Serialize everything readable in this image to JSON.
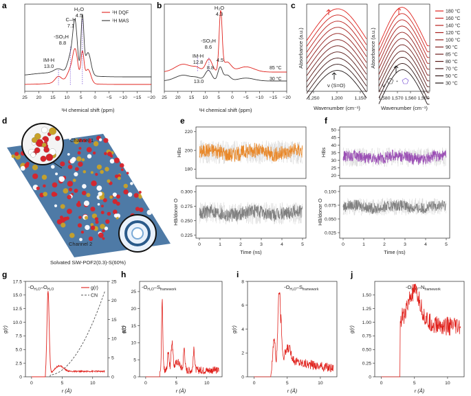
{
  "panel_labels": [
    "a",
    "b",
    "c",
    "d",
    "e",
    "f",
    "g",
    "h",
    "i",
    "j"
  ],
  "colors": {
    "red": "#e0201b",
    "black": "#333333",
    "orange": "#e9892b",
    "purple": "#9b4fb5",
    "gray": "#7f7f7f",
    "arrow": "#6a3fd0"
  },
  "panel_d": {
    "channel1": "Channel 1",
    "channel2": "Channel 2",
    "caption": "Solvated SiW-POF2(0.3)-S(60%)"
  },
  "chart_data": [
    {
      "id": "a",
      "type": "line",
      "xlabel": "¹H chemical shift (ppm)",
      "xlim": [
        25,
        -20
      ],
      "xticks": [
        "25",
        "20",
        "15",
        "10",
        "5",
        "0",
        "−5",
        "−10",
        "−15",
        "−20"
      ],
      "legend": [
        "¹H DQF",
        "¹H MAS"
      ],
      "annotations": [
        "H₂O",
        "4.5",
        "C–H",
        "7.1",
        "-SO₃H",
        "8.8",
        "IM-H",
        "13.0"
      ],
      "series": [
        {
          "name": "¹H DQF",
          "color": "#e0201b",
          "peaks_ppm": [
            13.0,
            8.8,
            7.1,
            4.5,
            2.5
          ]
        },
        {
          "name": "¹H MAS",
          "color": "#333333",
          "peaks_ppm": [
            13.0,
            8.8,
            7.1,
            4.5,
            2.5
          ]
        }
      ]
    },
    {
      "id": "b",
      "type": "line",
      "xlabel": "¹H chemical shift (ppm)",
      "xlim": [
        25,
        -20
      ],
      "xticks": [
        "25",
        "20",
        "15",
        "10",
        "5",
        "0",
        "−5",
        "−10",
        "−15",
        "−20"
      ],
      "annotations_black": [
        "H₂O",
        "-SO₃H",
        "IM-H",
        "4.5",
        "8.8",
        "13.0"
      ],
      "annotations_red": [
        "4.3",
        "8.6",
        "12.8"
      ],
      "series": [
        {
          "name": "85 °C",
          "color": "#e0201b",
          "peaks_ppm": [
            12.8,
            8.6,
            4.3
          ]
        },
        {
          "name": "30 °C",
          "color": "#333333",
          "peaks_ppm": [
            13.0,
            8.8,
            4.5
          ]
        }
      ]
    },
    {
      "id": "c",
      "type": "line",
      "ylabel": "Absorbance (a.u.)",
      "xlabel": "Wavenumber (cm⁻¹)",
      "left_xticks": [
        "1,250",
        "1,200",
        "1,150"
      ],
      "right_xticks": [
        "1,580",
        "1,570",
        "1,560",
        "1,550"
      ],
      "left_peak_label": "ν (S=O)",
      "right_peak_label": "ν",
      "temperatures": [
        "180 °C",
        "160 °C",
        "140 °C",
        "120 °C",
        "100 °C",
        "90 °C",
        "85 °C",
        "80 °C",
        "70 °C",
        "50 °C",
        "30 °C"
      ]
    },
    {
      "id": "e",
      "type": "line",
      "xlabel": "Time (ns)",
      "xticks": [
        "0",
        "1",
        "2",
        "3",
        "4",
        "5"
      ],
      "top": {
        "ylabel": "HBs",
        "yticks": [
          "220",
          "200",
          "180"
        ],
        "ylim": [
          170,
          225
        ],
        "mean": 198,
        "amplitude": 8,
        "color": "#e9892b"
      },
      "bottom": {
        "ylabel": "HB/donor O",
        "yticks": [
          "0.300",
          "0.275",
          "0.250",
          "0.225"
        ],
        "ylim": [
          0.22,
          0.31
        ],
        "mean": 0.263,
        "amplitude": 0.012,
        "color": "#7f7f7f"
      }
    },
    {
      "id": "f",
      "type": "line",
      "xlabel": "Time (ns)",
      "xticks": [
        "0",
        "1",
        "2",
        "3",
        "4",
        "5"
      ],
      "top": {
        "ylabel": "HBs",
        "yticks": [
          "50",
          "45",
          "40",
          "35",
          "30",
          "25",
          "20"
        ],
        "ylim": [
          18,
          52
        ],
        "mean": 32,
        "amplitude": 4,
        "color": "#9b4fb5"
      },
      "bottom": {
        "ylabel": "HB/donor O",
        "yticks": [
          "0.100",
          "0.075",
          "0.050",
          "0.025"
        ],
        "ylim": [
          0.015,
          0.11
        ],
        "mean": 0.072,
        "amplitude": 0.01,
        "color": "#7f7f7f"
      }
    },
    {
      "id": "g",
      "type": "line",
      "ylabel": "g(r)",
      "ylabel2": "CN",
      "xlabel": "r (Å)",
      "xlim": [
        -1,
        12.5
      ],
      "ylim": [
        0,
        17.5
      ],
      "y2lim": [
        0,
        25
      ],
      "xticks": [
        "0",
        "5",
        "10"
      ],
      "yticks": [
        "0",
        "2.5",
        "5.0",
        "7.5",
        "10.0",
        "12.5",
        "15.0",
        "17.5"
      ],
      "y2ticks": [
        "0",
        "5",
        "10",
        "15",
        "20",
        "25"
      ],
      "legend": [
        "g(r)",
        "CN"
      ],
      "pair_label": "-O",
      "series": [
        {
          "name": "g(r)",
          "color": "#e0201b",
          "peak_r": 2.7,
          "peak_value": 15.5
        },
        {
          "name": "CN",
          "color": "#555555",
          "r_start": 3,
          "r_end": 12,
          "cn_end": 22
        }
      ]
    },
    {
      "id": "h",
      "type": "line",
      "ylabel": "g(r)",
      "xlabel": "r (Å)",
      "xlim": [
        -1,
        12.5
      ],
      "ylim": [
        0,
        28
      ],
      "xticks": [
        "0",
        "5",
        "10"
      ],
      "yticks": [
        "0",
        "5",
        "10",
        "15",
        "20",
        "25"
      ],
      "pair_label": "-O",
      "series": [
        {
          "color": "#e0201b",
          "peaks": [
            [
              2.7,
              21
            ],
            [
              3.7,
              7
            ],
            [
              4.3,
              9
            ],
            [
              6.3,
              7
            ],
            [
              7.9,
              6.5
            ]
          ]
        }
      ]
    },
    {
      "id": "i",
      "type": "line",
      "ylabel": "g(r)",
      "xlabel": "r (Å)",
      "xlim": [
        -1,
        12.5
      ],
      "ylim": [
        0,
        8
      ],
      "xticks": [
        "0",
        "5",
        "10"
      ],
      "yticks": [
        "0",
        "2",
        "4",
        "6",
        "8"
      ],
      "pair_label": "-O",
      "series": [
        {
          "color": "#e0201b",
          "peaks": [
            [
              3.0,
              3.5
            ],
            [
              3.8,
              7.5
            ],
            [
              5.2,
              2.8
            ]
          ]
        }
      ]
    },
    {
      "id": "j",
      "type": "line",
      "ylabel": "g(r)",
      "xlabel": "r (Å)",
      "xlim": [
        -1,
        12.5
      ],
      "ylim": [
        0,
        1.75
      ],
      "xticks": [
        "0",
        "5",
        "10"
      ],
      "yticks": [
        "0",
        "0.25",
        "0.50",
        "0.75",
        "1.00",
        "1.25",
        "1.50"
      ],
      "pair_label": "-O",
      "series": [
        {
          "color": "#e0201b",
          "onset_r": 2.8,
          "peak_r": 5.0,
          "peak_value": 1.58,
          "tail_value": 0.85
        }
      ]
    }
  ]
}
